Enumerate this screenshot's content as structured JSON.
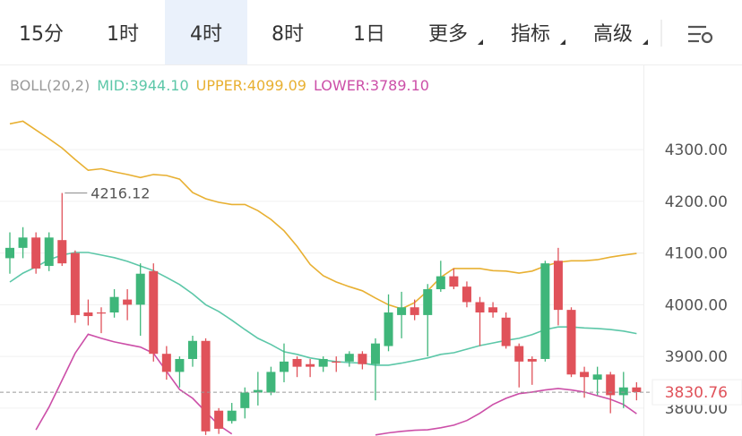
{
  "tabs": [
    "15分",
    "1时",
    "4时",
    "8时",
    "1日",
    "更多",
    "指标",
    "高级"
  ],
  "selected_tab": 2,
  "chart_data": {
    "type": "candlestick",
    "indicator": "BOLL(20,2)",
    "categories": [
      null,
      null,
      null,
      null,
      null,
      null,
      null,
      null,
      null,
      null,
      null,
      null,
      null,
      null,
      null,
      null,
      null,
      null,
      null,
      null,
      null,
      null,
      null,
      null,
      null,
      null,
      null,
      null,
      null,
      null,
      null,
      null,
      null,
      null,
      null,
      null,
      null,
      null,
      null,
      null,
      null,
      null,
      null,
      null,
      null,
      null,
      null,
      null,
      null
    ],
    "open": [
      4090,
      4110,
      4130,
      4075,
      4125,
      4100,
      3985,
      3985,
      3985,
      4010,
      4000,
      4065,
      3905,
      3870,
      3895,
      3930,
      3795,
      3775,
      3800,
      3830,
      3830,
      3870,
      3895,
      3885,
      3880,
      3890,
      3890,
      3905,
      3885,
      3920,
      3980,
      3995,
      3980,
      4030,
      4055,
      4035,
      4005,
      3995,
      3975,
      3920,
      3895,
      3895,
      4085,
      3990,
      3870,
      3855,
      3865,
      3825,
      3840
    ],
    "high": [
      4140,
      4150,
      4140,
      4140,
      4216.12,
      4105,
      4010,
      3995,
      4030,
      4030,
      4080,
      4080,
      3920,
      3900,
      3940,
      3935,
      3800,
      3810,
      3840,
      3870,
      3880,
      3925,
      3900,
      3895,
      3900,
      3900,
      3910,
      3910,
      3935,
      4020,
      4025,
      4010,
      4040,
      4085,
      4070,
      4045,
      4015,
      4005,
      3985,
      3925,
      3900,
      4085,
      4110,
      3995,
      3880,
      3880,
      3870,
      3870,
      3850
    ],
    "low": [
      4060,
      4090,
      4060,
      4065,
      4075,
      3965,
      3960,
      3945,
      3975,
      3970,
      3940,
      3890,
      3855,
      3840,
      3880,
      3748,
      3750,
      3770,
      3780,
      3805,
      3825,
      3850,
      3860,
      3860,
      3870,
      3870,
      3880,
      3875,
      3815,
      3910,
      3935,
      3970,
      3900,
      4025,
      4030,
      3995,
      3920,
      3975,
      3915,
      3840,
      3845,
      3890,
      3960,
      3860,
      3820,
      3825,
      3790,
      3800,
      3815
    ],
    "close": [
      4110,
      4130,
      4070,
      4130,
      4080,
      3980,
      3978,
      3983,
      4015,
      4000,
      4060,
      3905,
      3870,
      3895,
      3930,
      3755,
      3760,
      3795,
      3830,
      3835,
      3870,
      3890,
      3880,
      3880,
      3895,
      3888,
      3905,
      3885,
      3925,
      3985,
      3995,
      3980,
      4030,
      4055,
      4035,
      4005,
      3985,
      3985,
      3920,
      3890,
      3890,
      4080,
      3990,
      3865,
      3860,
      3865,
      3825,
      3840,
      3830.76
    ],
    "up_color": "#3fb67a",
    "down_color": "#e0525a",
    "series": [
      {
        "legend": "MID:3944.10",
        "color": "#5cc7a8",
        "values": [
          4044,
          4061,
          4073,
          4087,
          4096,
          4101,
          4101,
          4096,
          4091,
          4084,
          4075,
          4066,
          4053,
          4039,
          4021,
          4000,
          3987,
          3970,
          3952,
          3935,
          3923,
          3909,
          3904,
          3897,
          3893,
          3890,
          3888,
          3887,
          3883,
          3883,
          3887,
          3892,
          3897,
          3904,
          3907,
          3914,
          3921,
          3926,
          3931,
          3935,
          3942,
          3952,
          3957,
          3957,
          3955,
          3954,
          3952,
          3949,
          3944.1
        ]
      },
      {
        "legend": "UPPER:4099.09",
        "color": "#e8b032",
        "values": [
          4350,
          4355,
          4338,
          4321,
          4303,
          4281,
          4260,
          4263,
          4257,
          4252,
          4246,
          4252,
          4250,
          4243,
          4217,
          4205,
          4198,
          4194,
          4194,
          4182,
          4165,
          4143,
          4113,
          4078,
          4056,
          4044,
          4035,
          4027,
          4013,
          4000,
          3992,
          4004,
          4027,
          4053,
          4070,
          4070,
          4070,
          4066,
          4065,
          4061,
          4065,
          4075,
          4082,
          4085,
          4085,
          4087,
          4092,
          4096,
          4099.09
        ]
      },
      {
        "legend": "LOWER:3789.10",
        "color": "#cc4fa8",
        "values": [
          null,
          null,
          3758,
          3802,
          3854,
          3906,
          3943,
          3935,
          3928,
          3923,
          3918,
          3906,
          3871,
          3836,
          3819,
          3793,
          3767,
          3750,
          null,
          null,
          null,
          null,
          null,
          null,
          null,
          null,
          null,
          null,
          3748,
          3752,
          3755,
          3757,
          3758,
          3762,
          3767,
          3776,
          3790,
          3807,
          3819,
          3828,
          3831,
          3835,
          3838,
          3835,
          3831,
          3824,
          3817,
          3807,
          3789.1
        ]
      }
    ],
    "annotations": [
      {
        "text": "4216.12",
        "value": 4216.12
      }
    ],
    "last_price": 3830.76,
    "ylim": [
      3746,
      4399
    ],
    "yticks": [
      {
        "value": 3800,
        "label": "3800.00"
      },
      {
        "value": 3900,
        "label": "3900.00"
      },
      {
        "value": 4000,
        "label": "4000.00"
      },
      {
        "value": 4100,
        "label": "4100.00"
      },
      {
        "value": 4200,
        "label": "4200.00"
      },
      {
        "value": 4300,
        "label": "4300.00"
      }
    ],
    "grid": true
  }
}
